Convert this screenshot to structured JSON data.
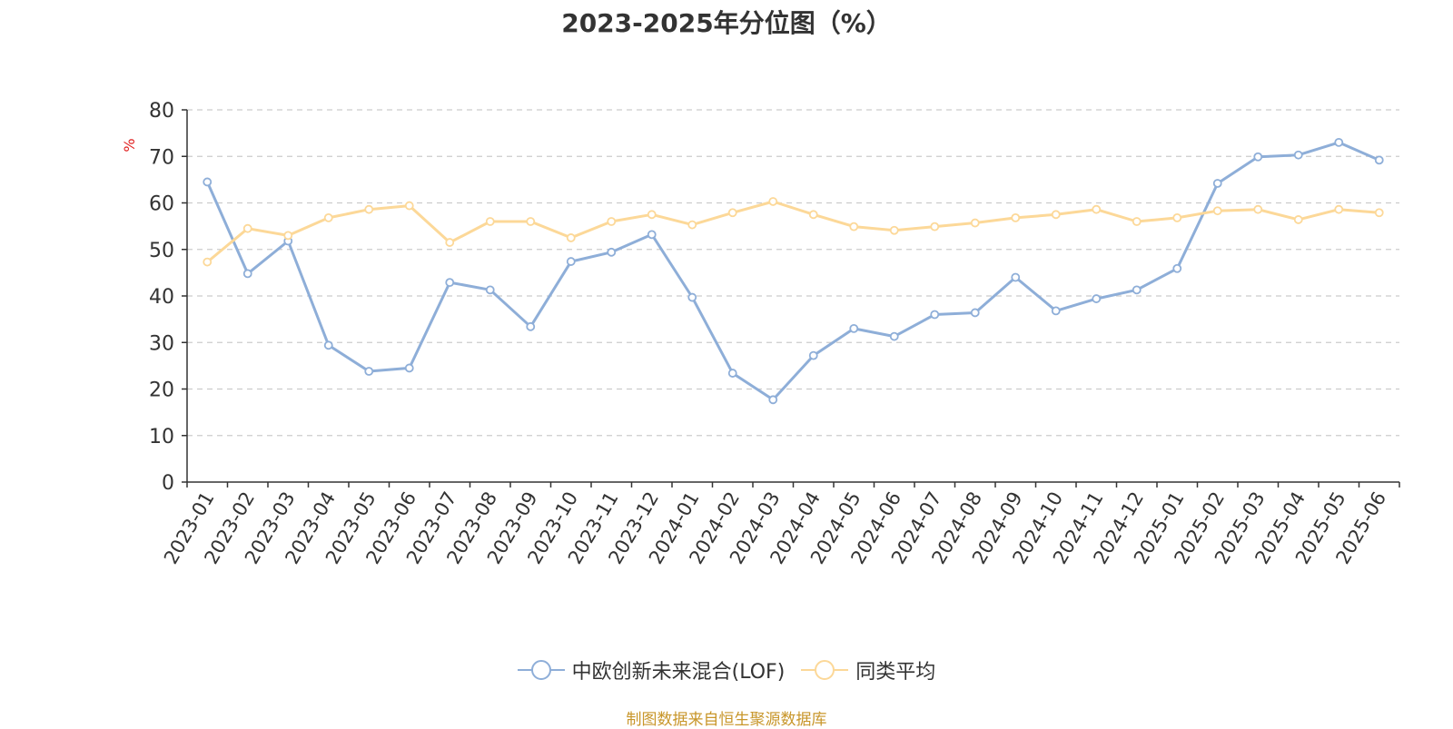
{
  "chart_data": {
    "type": "line",
    "title": "2023-2025年分位图（%）",
    "ylabel": "%",
    "xlabel": "",
    "ylim": [
      0,
      80
    ],
    "yticks": [
      0,
      10,
      20,
      30,
      40,
      50,
      60,
      70,
      80
    ],
    "grid": "horizontal dashed",
    "legend_position": "bottom-center",
    "categories": [
      "2023-01",
      "2023-02",
      "2023-03",
      "2023-04",
      "2023-05",
      "2023-06",
      "2023-07",
      "2023-08",
      "2023-09",
      "2023-10",
      "2023-11",
      "2023-12",
      "2024-01",
      "2024-02",
      "2024-03",
      "2024-04",
      "2024-05",
      "2024-06",
      "2024-07",
      "2024-08",
      "2024-09",
      "2024-10",
      "2024-11",
      "2024-12",
      "2025-01",
      "2025-02",
      "2025-03",
      "2025-04",
      "2025-05",
      "2025-06"
    ],
    "series": [
      {
        "name": "中欧创新未来混合(LOF)",
        "color": "#8eaed8",
        "values": [
          64.5,
          44.8,
          51.8,
          29.4,
          23.8,
          24.5,
          42.9,
          41.3,
          33.4,
          47.4,
          49.4,
          53.2,
          39.7,
          23.4,
          17.7,
          27.2,
          33.0,
          31.3,
          36.0,
          36.4,
          44.0,
          36.8,
          39.4,
          41.3,
          45.9,
          64.2,
          69.9,
          70.3,
          73.0,
          69.2
        ]
      },
      {
        "name": "同类平均",
        "color": "#fcd898",
        "values": [
          47.3,
          54.5,
          53.0,
          56.8,
          58.6,
          59.4,
          51.5,
          56.0,
          56.0,
          52.5,
          56.0,
          57.5,
          55.3,
          57.9,
          60.3,
          57.5,
          54.9,
          54.1,
          54.9,
          55.7,
          56.8,
          57.5,
          58.6,
          56.0,
          56.8,
          58.3,
          58.6,
          56.4,
          58.6,
          57.9
        ]
      }
    ]
  },
  "source_note": "制图数据来自恒生聚源数据库"
}
